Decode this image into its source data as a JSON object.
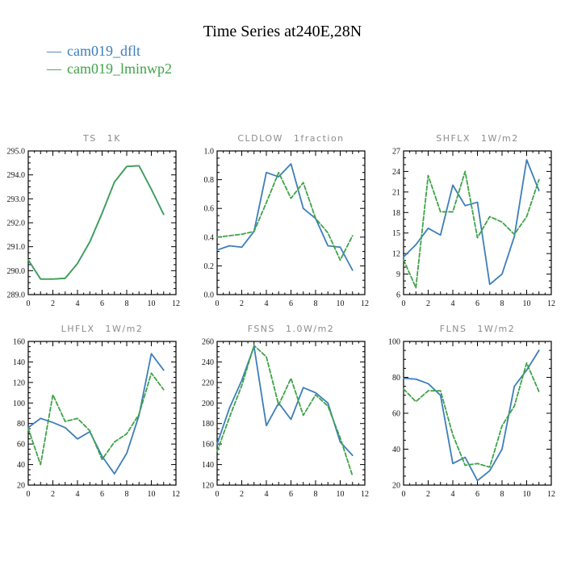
{
  "header": {
    "title": "Time Series at240E,28N",
    "legend": [
      {
        "label": "cam019_dflt",
        "color": "#3d7ebb",
        "dash": "—"
      },
      {
        "label": "cam019_lminwp2",
        "color": "#3fa348",
        "dash": "—"
      }
    ]
  },
  "colors": {
    "dflt": "#3d7ebb",
    "lminwp2": "#3fa348",
    "axis": "#000000",
    "title_gray": "#8c8c8c"
  },
  "chart_data": [
    {
      "type": "line",
      "varname": "TS",
      "units": "1K",
      "x": [
        0,
        1,
        2,
        3,
        4,
        5,
        6,
        7,
        8,
        9,
        10,
        11
      ],
      "xlim": [
        0,
        12
      ],
      "ylim": [
        289.0,
        295.0
      ],
      "xtick_labels": [
        "0",
        "2",
        "4",
        "6",
        "8",
        "10",
        "12"
      ],
      "ytick_labels": [
        "289.0",
        "290.0",
        "291.0",
        "292.0",
        "293.0",
        "294.0",
        "295.0"
      ],
      "ymajor": 1.0,
      "yminor": 0.25,
      "series": [
        {
          "name": "cam019_dflt",
          "style": "solid",
          "values": [
            290.45,
            289.65,
            289.65,
            289.68,
            290.3,
            291.2,
            292.4,
            293.7,
            294.35,
            294.38,
            293.4,
            292.35
          ]
        },
        {
          "name": "cam019_lminwp2",
          "style": "dashed",
          "values": [
            290.45,
            289.65,
            289.65,
            289.68,
            290.3,
            291.2,
            292.4,
            293.7,
            294.35,
            294.38,
            293.4,
            292.35
          ]
        }
      ]
    },
    {
      "type": "line",
      "varname": "CLDLOW",
      "units": "1fraction",
      "x": [
        0,
        1,
        2,
        3,
        4,
        5,
        6,
        7,
        8,
        9,
        10,
        11
      ],
      "xlim": [
        0,
        12
      ],
      "ylim": [
        0.0,
        1.0
      ],
      "xtick_labels": [
        "0",
        "2",
        "4",
        "6",
        "8",
        "10",
        "12"
      ],
      "ytick_labels": [
        "0.0",
        "0.2",
        "0.4",
        "0.6",
        "0.8",
        "1.0"
      ],
      "ymajor": 0.2,
      "yminor": 0.05,
      "series": [
        {
          "name": "cam019_dflt",
          "style": "solid",
          "values": [
            0.31,
            0.34,
            0.33,
            0.44,
            0.85,
            0.82,
            0.91,
            0.6,
            0.53,
            0.34,
            0.33,
            0.17
          ]
        },
        {
          "name": "cam019_lminwp2",
          "style": "dashed",
          "values": [
            0.4,
            0.41,
            0.42,
            0.44,
            0.64,
            0.85,
            0.67,
            0.78,
            0.53,
            0.43,
            0.24,
            0.41
          ]
        }
      ]
    },
    {
      "type": "line",
      "varname": "SHFLX",
      "units": "1W/m2",
      "x": [
        0,
        1,
        2,
        3,
        4,
        5,
        6,
        7,
        8,
        9,
        10,
        11
      ],
      "xlim": [
        0,
        12
      ],
      "ylim": [
        6,
        27
      ],
      "xtick_labels": [
        "0",
        "2",
        "4",
        "6",
        "8",
        "10",
        "12"
      ],
      "ytick_labels": [
        "6",
        "9",
        "12",
        "15",
        "18",
        "21",
        "24",
        "27"
      ],
      "ymajor": 3,
      "yminor": 1,
      "series": [
        {
          "name": "cam019_dflt",
          "style": "solid",
          "values": [
            11.5,
            13.3,
            15.7,
            14.7,
            22.0,
            19.0,
            19.5,
            7.5,
            9.0,
            14.5,
            25.7,
            21.2
          ]
        },
        {
          "name": "cam019_lminwp2",
          "style": "dashed",
          "values": [
            11.1,
            7.0,
            23.4,
            18.1,
            18.1,
            24.0,
            14.3,
            17.4,
            16.6,
            14.8,
            17.4,
            22.8
          ]
        }
      ]
    },
    {
      "type": "line",
      "varname": "LHFLX",
      "units": "1W/m2",
      "x": [
        0,
        1,
        2,
        3,
        4,
        5,
        6,
        7,
        8,
        9,
        10,
        11
      ],
      "xlim": [
        0,
        12
      ],
      "ylim": [
        20,
        160
      ],
      "xtick_labels": [
        "0",
        "2",
        "4",
        "6",
        "8",
        "10",
        "12"
      ],
      "ytick_labels": [
        "20",
        "40",
        "60",
        "80",
        "100",
        "120",
        "140",
        "160"
      ],
      "ymajor": 20,
      "yminor": 5,
      "series": [
        {
          "name": "cam019_dflt",
          "style": "solid",
          "values": [
            76,
            85,
            81,
            76,
            65,
            72,
            48,
            31,
            51,
            88,
            148,
            132
          ]
        },
        {
          "name": "cam019_lminwp2",
          "style": "dashed",
          "values": [
            75,
            40,
            108,
            82,
            85,
            73,
            45,
            62,
            70,
            89,
            129,
            113
          ]
        }
      ]
    },
    {
      "type": "line",
      "varname": "FSNS",
      "units": "1.0W/m2",
      "x": [
        0,
        1,
        2,
        3,
        4,
        5,
        6,
        7,
        8,
        9,
        10,
        11
      ],
      "xlim": [
        0,
        12
      ],
      "ylim": [
        120,
        260
      ],
      "xtick_labels": [
        "0",
        "2",
        "4",
        "6",
        "8",
        "10",
        "12"
      ],
      "ytick_labels": [
        "120",
        "140",
        "160",
        "180",
        "200",
        "220",
        "240",
        "260"
      ],
      "ymajor": 20,
      "yminor": 5,
      "series": [
        {
          "name": "cam019_dflt",
          "style": "solid",
          "values": [
            160,
            195,
            222,
            255,
            178,
            200,
            184,
            215,
            210,
            200,
            162,
            149
          ]
        },
        {
          "name": "cam019_lminwp2",
          "style": "dashed",
          "values": [
            153,
            186,
            217,
            256,
            245,
            198,
            224,
            188,
            208,
            197,
            166,
            129
          ]
        }
      ]
    },
    {
      "type": "line",
      "varname": "FLNS",
      "units": "1W/m2",
      "x": [
        0,
        1,
        2,
        3,
        4,
        5,
        6,
        7,
        8,
        9,
        10,
        11
      ],
      "xlim": [
        0,
        12
      ],
      "ylim": [
        20,
        100
      ],
      "xtick_labels": [
        "0",
        "2",
        "4",
        "6",
        "8",
        "10",
        "12"
      ],
      "ytick_labels": [
        "20",
        "40",
        "60",
        "80",
        "100"
      ],
      "ymajor": 20,
      "yminor": 5,
      "series": [
        {
          "name": "cam019_dflt",
          "style": "solid",
          "values": [
            79.5,
            79,
            76.5,
            70,
            32,
            35.5,
            22.5,
            28,
            40,
            75,
            84,
            95
          ]
        },
        {
          "name": "cam019_lminwp2",
          "style": "dashed",
          "values": [
            73.5,
            66.5,
            72.5,
            72.5,
            48,
            31,
            32,
            30,
            53,
            64,
            88,
            72
          ]
        }
      ]
    }
  ]
}
